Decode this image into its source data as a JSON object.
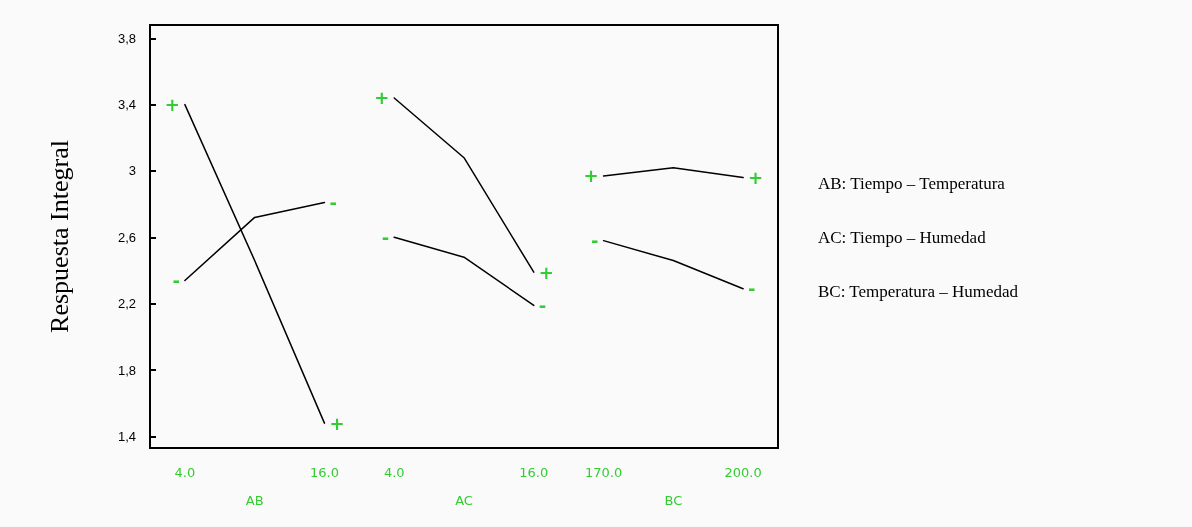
{
  "chart_data": {
    "type": "line",
    "ylabel": "Respuesta Integral",
    "categories": [
      "4.0",
      null,
      "16.0",
      "4.0",
      null,
      "16.0",
      "170.0",
      null,
      "200.0"
    ],
    "series": [
      {
        "name": "+",
        "color": "#000000",
        "values": [
          3.4,
          2.46,
          1.48,
          null,
          null,
          null,
          null,
          null,
          null
        ]
      },
      {
        "name": "-",
        "color": "#000000",
        "values": [
          2.34,
          2.72,
          2.81,
          null,
          null,
          null,
          null,
          null,
          null
        ]
      },
      {
        "name": "+",
        "color": "#000000",
        "values": [
          null,
          null,
          null,
          3.44,
          3.08,
          2.39,
          null,
          null,
          null
        ]
      },
      {
        "name": "-",
        "color": "#000000",
        "values": [
          null,
          null,
          null,
          2.6,
          2.48,
          2.19,
          null,
          null,
          null
        ]
      },
      {
        "name": "+",
        "color": "#000000",
        "values": [
          null,
          null,
          null,
          null,
          null,
          null,
          2.97,
          3.02,
          2.96
        ]
      },
      {
        "name": "-",
        "color": "#000000",
        "values": [
          null,
          null,
          null,
          null,
          null,
          null,
          2.58,
          2.46,
          2.29
        ]
      }
    ],
    "ylim": [
      1.33,
      3.88
    ],
    "yticks": [
      {
        "value": 1.4,
        "label": "1,4"
      },
      {
        "value": 1.8,
        "label": "1,8"
      },
      {
        "value": 2.2,
        "label": "2,2"
      },
      {
        "value": 2.6,
        "label": "2,6"
      },
      3,
      {
        "value": 3.4,
        "label": "3,4"
      },
      {
        "value": 3.8,
        "label": "3,8"
      }
    ],
    "annotations": [
      "AB",
      "AC",
      "BC",
      "AB: Tiempo – Temperatura",
      "AC: Tiempo – Humedad",
      "BC: Temperatura – Humedad"
    ],
    "grid": false,
    "legend": false,
    "marker": "none",
    "line_style": "solid"
  }
}
